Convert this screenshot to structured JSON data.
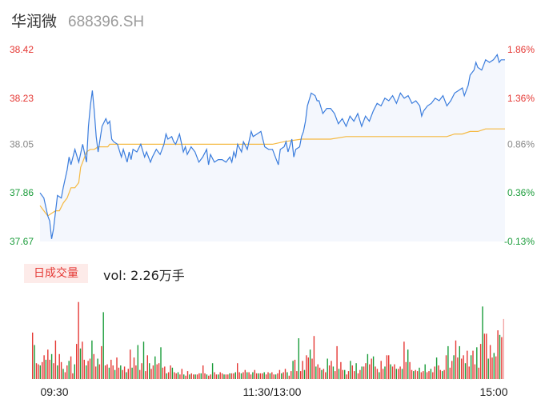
{
  "header": {
    "name": "华润微",
    "code": "688396.SH"
  },
  "volume": {
    "tag": "日成交量",
    "label": "vol: 2.26万手"
  },
  "colors": {
    "up": "#e53935",
    "down": "#1a9c3a",
    "neutral": "#888888",
    "price_line": "#3b7ddd",
    "avg_line": "#f5b942",
    "fill": "#f4f7fd"
  },
  "chart_data": {
    "type": "line",
    "ylim": [
      37.67,
      38.42
    ],
    "y_ticks": [
      {
        "label": "38.42",
        "value": 38.42,
        "color": "up"
      },
      {
        "label": "38.23",
        "value": 38.23,
        "color": "up"
      },
      {
        "label": "38.05",
        "value": 38.05,
        "color": "neutral"
      },
      {
        "label": "37.86",
        "value": 37.86,
        "color": "down"
      },
      {
        "label": "37.67",
        "value": 37.67,
        "color": "down"
      }
    ],
    "pct_ticks": [
      {
        "label": "1.86%",
        "color": "up"
      },
      {
        "label": "1.36%",
        "color": "up"
      },
      {
        "label": "0.86%",
        "color": "neutral"
      },
      {
        "label": "0.36%",
        "color": "down"
      },
      {
        "label": "-0.13%",
        "color": "down"
      }
    ],
    "x_ticks": [
      "09:30",
      "11:30/13:00",
      "15:00"
    ],
    "x_tick_index": [
      0,
      120,
      240
    ],
    "series": [
      {
        "kind": "price",
        "points": [
          [
            0,
            37.86
          ],
          [
            2,
            37.84
          ],
          [
            4,
            37.77
          ],
          [
            5,
            37.75
          ],
          [
            6,
            37.68
          ],
          [
            7,
            37.72
          ],
          [
            9,
            37.85
          ],
          [
            11,
            37.84
          ],
          [
            12,
            37.88
          ],
          [
            14,
            37.95
          ],
          [
            15,
            38.0
          ],
          [
            16,
            37.97
          ],
          [
            18,
            38.03
          ],
          [
            20,
            37.98
          ],
          [
            22,
            38.05
          ],
          [
            24,
            37.98
          ],
          [
            25,
            38.12
          ],
          [
            26,
            38.2
          ],
          [
            27,
            38.26
          ],
          [
            28,
            38.18
          ],
          [
            29,
            38.08
          ],
          [
            30,
            38.02
          ],
          [
            32,
            38.12
          ],
          [
            34,
            38.15
          ],
          [
            35,
            38.13
          ],
          [
            36,
            38.14
          ],
          [
            37,
            38.07
          ],
          [
            38,
            38.06
          ],
          [
            40,
            38.05
          ],
          [
            42,
            38.0
          ],
          [
            43,
            38.03
          ],
          [
            45,
            37.98
          ],
          [
            46,
            38.02
          ],
          [
            47,
            37.99
          ],
          [
            48,
            38.03
          ],
          [
            50,
            38.02
          ],
          [
            52,
            38.05
          ],
          [
            54,
            38.0
          ],
          [
            55,
            38.02
          ],
          [
            57,
            37.98
          ],
          [
            58,
            38.0
          ],
          [
            60,
            38.03
          ],
          [
            62,
            38.01
          ],
          [
            64,
            38.05
          ],
          [
            65,
            38.09
          ],
          [
            66,
            38.07
          ],
          [
            68,
            38.08
          ],
          [
            69,
            38.06
          ],
          [
            70,
            38.05
          ],
          [
            72,
            38.09
          ],
          [
            74,
            38.02
          ],
          [
            75,
            38.04
          ],
          [
            76,
            38.01
          ],
          [
            78,
            38.04
          ],
          [
            80,
            38.02
          ],
          [
            82,
            37.98
          ],
          [
            84,
            38.0
          ],
          [
            86,
            38.03
          ],
          [
            87,
            37.97
          ],
          [
            88,
            38.01
          ],
          [
            90,
            37.98
          ],
          [
            92,
            37.99
          ],
          [
            94,
            37.99
          ],
          [
            96,
            37.98
          ],
          [
            98,
            38.0
          ],
          [
            99,
            37.98
          ],
          [
            100,
            38.02
          ],
          [
            101,
            38.0
          ],
          [
            102,
            38.05
          ],
          [
            104,
            38.02
          ],
          [
            105,
            38.06
          ],
          [
            107,
            38.03
          ],
          [
            109,
            38.1
          ],
          [
            110,
            38.08
          ],
          [
            112,
            38.09
          ],
          [
            114,
            38.1
          ],
          [
            116,
            38.04
          ],
          [
            118,
            38.03
          ],
          [
            120,
            38.03
          ],
          [
            122,
            37.99
          ],
          [
            123,
            37.97
          ],
          [
            124,
            38.03
          ],
          [
            126,
            38.04
          ],
          [
            127,
            38.06
          ],
          [
            128,
            38.02
          ],
          [
            130,
            38.07
          ],
          [
            131,
            38.0
          ],
          [
            132,
            38.03
          ],
          [
            134,
            38.04
          ],
          [
            135,
            38.08
          ],
          [
            136,
            38.1
          ],
          [
            137,
            38.14
          ],
          [
            138,
            38.2
          ],
          [
            140,
            38.25
          ],
          [
            142,
            38.24
          ],
          [
            143,
            38.22
          ],
          [
            144,
            38.22
          ],
          [
            146,
            38.17
          ],
          [
            148,
            38.19
          ],
          [
            150,
            38.19
          ],
          [
            152,
            38.17
          ],
          [
            153,
            38.15
          ],
          [
            154,
            38.13
          ],
          [
            156,
            38.15
          ],
          [
            158,
            38.12
          ],
          [
            160,
            38.16
          ],
          [
            162,
            38.14
          ],
          [
            164,
            38.17
          ],
          [
            166,
            38.12
          ],
          [
            167,
            38.14
          ],
          [
            168,
            38.16
          ],
          [
            170,
            38.14
          ],
          [
            172,
            38.18
          ],
          [
            174,
            38.21
          ],
          [
            176,
            38.2
          ],
          [
            178,
            38.23
          ],
          [
            180,
            38.22
          ],
          [
            182,
            38.24
          ],
          [
            184,
            38.21
          ],
          [
            186,
            38.25
          ],
          [
            188,
            38.23
          ],
          [
            190,
            38.24
          ],
          [
            192,
            38.21
          ],
          [
            194,
            38.22
          ],
          [
            196,
            38.2
          ],
          [
            197,
            38.16
          ],
          [
            198,
            38.18
          ],
          [
            200,
            38.2
          ],
          [
            202,
            38.21
          ],
          [
            204,
            38.23
          ],
          [
            206,
            38.22
          ],
          [
            208,
            38.24
          ],
          [
            210,
            38.2
          ],
          [
            212,
            38.22
          ],
          [
            214,
            38.25
          ],
          [
            216,
            38.26
          ],
          [
            218,
            38.27
          ],
          [
            219,
            38.24
          ],
          [
            220,
            38.26
          ],
          [
            221,
            38.28
          ],
          [
            222,
            38.32
          ],
          [
            224,
            38.34
          ],
          [
            225,
            38.37
          ],
          [
            226,
            38.35
          ],
          [
            228,
            38.34
          ],
          [
            229,
            38.36
          ],
          [
            230,
            38.38
          ],
          [
            232,
            38.37
          ],
          [
            234,
            38.38
          ],
          [
            236,
            38.4
          ],
          [
            237,
            38.37
          ],
          [
            238,
            38.38
          ],
          [
            239,
            38.38
          ],
          [
            240,
            38.38
          ]
        ]
      },
      {
        "kind": "average",
        "points": [
          [
            0,
            37.81
          ],
          [
            2,
            37.79
          ],
          [
            4,
            37.77
          ],
          [
            6,
            37.78
          ],
          [
            8,
            37.79
          ],
          [
            10,
            37.79
          ],
          [
            12,
            37.82
          ],
          [
            14,
            37.84
          ],
          [
            16,
            37.88
          ],
          [
            18,
            37.88
          ],
          [
            20,
            37.9
          ],
          [
            21,
            37.96
          ],
          [
            22,
            37.98
          ],
          [
            24,
            38.02
          ],
          [
            26,
            38.03
          ],
          [
            28,
            38.03
          ],
          [
            30,
            38.04
          ],
          [
            35,
            38.04
          ],
          [
            36,
            38.05
          ],
          [
            50,
            38.05
          ],
          [
            62,
            38.05
          ],
          [
            100,
            38.05
          ],
          [
            120,
            38.05
          ],
          [
            126,
            38.06
          ],
          [
            135,
            38.07
          ],
          [
            150,
            38.07
          ],
          [
            158,
            38.08
          ],
          [
            200,
            38.08
          ],
          [
            210,
            38.08
          ],
          [
            214,
            38.09
          ],
          [
            218,
            38.09
          ],
          [
            222,
            38.1
          ],
          [
            226,
            38.1
          ],
          [
            230,
            38.11
          ],
          [
            236,
            38.11
          ],
          [
            240,
            38.11
          ]
        ]
      }
    ],
    "volume_bars": [
      0.41,
      0.3,
      0.14,
      0.13,
      0.12,
      0.15,
      0.21,
      0.17,
      0.26,
      0.17,
      0.22,
      0.14,
      0.34,
      0.12,
      0.22,
      0.15,
      0.09,
      0.06,
      0.12,
      0.16,
      0.2,
      0.05,
      0.13,
      0.31,
      0.68,
      0.27,
      0.33,
      0.17,
      0.12,
      0.16,
      0.18,
      0.34,
      0.22,
      0.11,
      0.18,
      0.13,
      0.29,
      0.59,
      0.12,
      0.13,
      0.1,
      0.17,
      0.12,
      0.08,
      0.19,
      0.1,
      0.12,
      0.08,
      0.11,
      0.06,
      0.09,
      0.26,
      0.1,
      0.19,
      0.12,
      0.3,
      0.08,
      0.14,
      0.33,
      0.07,
      0.21,
      0.14,
      0.09,
      0.12,
      0.2,
      0.13,
      0.14,
      0.28,
      0.1,
      0.11,
      0.05,
      0.06,
      0.12,
      0.1,
      0.06,
      0.05,
      0.06,
      0.04,
      0.09,
      0.04,
      0.03,
      0.07,
      0.04,
      0.05,
      0.04,
      0.04,
      0.04,
      0.05,
      0.05,
      0.12,
      0.05,
      0.04,
      0.03,
      0.04,
      0.14,
      0.06,
      0.04,
      0.04,
      0.06,
      0.05,
      0.04,
      0.04,
      0.04,
      0.05,
      0.05,
      0.05,
      0.06,
      0.14,
      0.06,
      0.05,
      0.06,
      0.08,
      0.06,
      0.06,
      0.04,
      0.06,
      0.08,
      0.05,
      0.05,
      0.05,
      0.05,
      0.06,
      0.04,
      0.06,
      0.05,
      0.06,
      0.04,
      0.04,
      0.05,
      0.08,
      0.05,
      0.06,
      0.09,
      0.06,
      0.03,
      0.07,
      0.16,
      0.17,
      0.07,
      0.36,
      0.07,
      0.16,
      0.08,
      0.21,
      0.19,
      0.26,
      0.18,
      0.38,
      0.11,
      0.13,
      0.1,
      0.08,
      0.09,
      0.06,
      0.18,
      0.12,
      0.16,
      0.11,
      0.07,
      0.29,
      0.09,
      0.15,
      0.08,
      0.08,
      0.04,
      0.07,
      0.16,
      0.12,
      0.07,
      0.14,
      0.05,
      0.08,
      0.11,
      0.11,
      0.14,
      0.22,
      0.13,
      0.18,
      0.2,
      0.11,
      0.09,
      0.06,
      0.16,
      0.09,
      0.11,
      0.21,
      0.21,
      0.13,
      0.11,
      0.13,
      0.09,
      0.09,
      0.11,
      0.09,
      0.33,
      0.15,
      0.26,
      0.15,
      0.08,
      0.07,
      0.08,
      0.07,
      0.1,
      0.06,
      0.07,
      0.13,
      0.06,
      0.07,
      0.09,
      0.06,
      0.11,
      0.19,
      0.12,
      0.08,
      0.07,
      0.08,
      0.21,
      0.29,
      0.1,
      0.16,
      0.21,
      0.34,
      0.19,
      0.29,
      0.18,
      0.21,
      0.14,
      0.25,
      0.11,
      0.21,
      0.25,
      0.13,
      0.28,
      0.1,
      0.31,
      0.64,
      0.4,
      0.4,
      0.18,
      0.3,
      0.19,
      0.23,
      0.2,
      0.43,
      0.39,
      0.37,
      0.53
    ]
  }
}
